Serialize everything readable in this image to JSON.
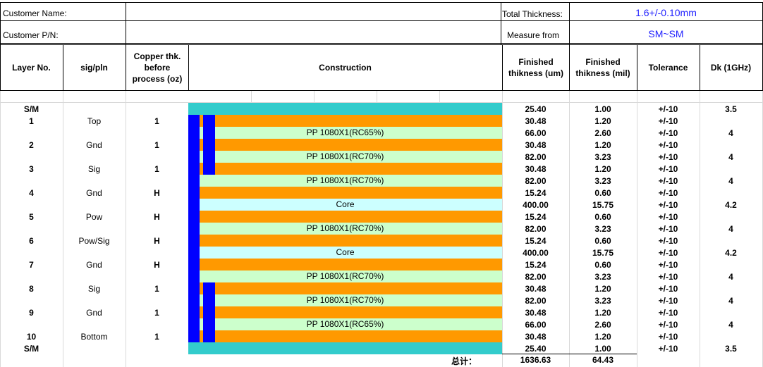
{
  "info": {
    "customer_name_label": "Customer Name:",
    "customer_pn_label": "Customer P/N:",
    "customer_name_value": "",
    "customer_pn_value": "",
    "total_thickness_label": "Total Thickness:",
    "total_thickness_value": "1.6+/-0.10mm",
    "measure_from_label": "Measure from",
    "measure_from_value": "SM~SM"
  },
  "headers": {
    "layer_no": "Layer No.",
    "sig_pln": "sig/pln",
    "copper": "Copper thk. before process (oz)",
    "construction": "Construction",
    "finished_um": "Finished thikness (um)",
    "finished_mil": "Finished thikness (mil)",
    "tolerance": "Tolerance",
    "dk": "Dk (1GHz)"
  },
  "rows": [
    {
      "layer": "S/M",
      "sig": "",
      "cu": "",
      "material": "",
      "um": "25.40",
      "mil": "1.00",
      "tol": "+/-10",
      "dk": "3.5",
      "color": "#33cccc"
    },
    {
      "layer": "1",
      "sig": "Top",
      "cu": "1",
      "material": "",
      "um": "30.48",
      "mil": "1.20",
      "tol": "+/-10",
      "dk": "",
      "color": "#ff9900"
    },
    {
      "layer": "",
      "sig": "",
      "cu": "",
      "material": "PP 1080X1(RC65%)",
      "um": "66.00",
      "mil": "2.60",
      "tol": "+/-10",
      "dk": "4",
      "color": "#ccffcc"
    },
    {
      "layer": "2",
      "sig": "Gnd",
      "cu": "1",
      "material": "",
      "um": "30.48",
      "mil": "1.20",
      "tol": "+/-10",
      "dk": "",
      "color": "#ff9900"
    },
    {
      "layer": "",
      "sig": "",
      "cu": "",
      "material": "PP 1080X1(RC70%)",
      "um": "82.00",
      "mil": "3.23",
      "tol": "+/-10",
      "dk": "4",
      "color": "#ccffcc"
    },
    {
      "layer": "3",
      "sig": "Sig",
      "cu": "1",
      "material": "",
      "um": "30.48",
      "mil": "1.20",
      "tol": "+/-10",
      "dk": "",
      "color": "#ff9900"
    },
    {
      "layer": "",
      "sig": "",
      "cu": "",
      "material": "PP 1080X1(RC70%)",
      "um": "82.00",
      "mil": "3.23",
      "tol": "+/-10",
      "dk": "4",
      "color": "#ccffcc"
    },
    {
      "layer": "4",
      "sig": "Gnd",
      "cu": "H",
      "material": "",
      "um": "15.24",
      "mil": "0.60",
      "tol": "+/-10",
      "dk": "",
      "color": "#ff9900"
    },
    {
      "layer": "",
      "sig": "",
      "cu": "",
      "material": "Core",
      "um": "400.00",
      "mil": "15.75",
      "tol": "+/-10",
      "dk": "4.2",
      "color": "#ccffff"
    },
    {
      "layer": "5",
      "sig": "Pow",
      "cu": "H",
      "material": "",
      "um": "15.24",
      "mil": "0.60",
      "tol": "+/-10",
      "dk": "",
      "color": "#ff9900"
    },
    {
      "layer": "",
      "sig": "",
      "cu": "",
      "material": "PP 1080X1(RC70%)",
      "um": "82.00",
      "mil": "3.23",
      "tol": "+/-10",
      "dk": "4",
      "color": "#ccffcc"
    },
    {
      "layer": "6",
      "sig": "Pow/Sig",
      "cu": "H",
      "material": "",
      "um": "15.24",
      "mil": "0.60",
      "tol": "+/-10",
      "dk": "",
      "color": "#ff9900"
    },
    {
      "layer": "",
      "sig": "",
      "cu": "",
      "material": "Core",
      "um": "400.00",
      "mil": "15.75",
      "tol": "+/-10",
      "dk": "4.2",
      "color": "#ccffff"
    },
    {
      "layer": "7",
      "sig": "Gnd",
      "cu": "H",
      "material": "",
      "um": "15.24",
      "mil": "0.60",
      "tol": "+/-10",
      "dk": "",
      "color": "#ff9900"
    },
    {
      "layer": "",
      "sig": "",
      "cu": "",
      "material": "PP 1080X1(RC70%)",
      "um": "82.00",
      "mil": "3.23",
      "tol": "+/-10",
      "dk": "4",
      "color": "#ccffcc"
    },
    {
      "layer": "8",
      "sig": "Sig",
      "cu": "1",
      "material": "",
      "um": "30.48",
      "mil": "1.20",
      "tol": "+/-10",
      "dk": "",
      "color": "#ff9900"
    },
    {
      "layer": "",
      "sig": "",
      "cu": "",
      "material": "PP 1080X1(RC70%)",
      "um": "82.00",
      "mil": "3.23",
      "tol": "+/-10",
      "dk": "4",
      "color": "#ccffcc"
    },
    {
      "layer": "9",
      "sig": "Gnd",
      "cu": "1",
      "material": "",
      "um": "30.48",
      "mil": "1.20",
      "tol": "+/-10",
      "dk": "",
      "color": "#ff9900"
    },
    {
      "layer": "",
      "sig": "",
      "cu": "",
      "material": "PP 1080X1(RC65%)",
      "um": "66.00",
      "mil": "2.60",
      "tol": "+/-10",
      "dk": "4",
      "color": "#ccffcc"
    },
    {
      "layer": "10",
      "sig": "Bottom",
      "cu": "1",
      "material": "",
      "um": "30.48",
      "mil": "1.20",
      "tol": "+/-10",
      "dk": "",
      "color": "#ff9900"
    },
    {
      "layer": "S/M",
      "sig": "",
      "cu": "",
      "material": "",
      "um": "25.40",
      "mil": "1.00",
      "tol": "+/-10",
      "dk": "3.5",
      "color": "#33cccc"
    }
  ],
  "total": {
    "label": "总计：",
    "um": "1636.63",
    "mil": "64.43"
  },
  "colors": {
    "solder_mask": "#33cccc",
    "copper": "#ff9900",
    "prepreg": "#ccffcc",
    "core": "#ccffff",
    "via": "#0000ff",
    "value_text": "#1f1fff"
  }
}
